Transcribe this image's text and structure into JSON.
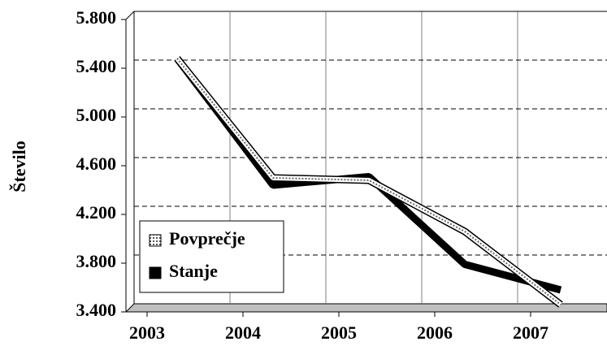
{
  "chart_data": {
    "type": "line",
    "y_label": "Število",
    "categories": [
      "2003",
      "2004",
      "2005",
      "2006",
      "2007"
    ],
    "series": [
      {
        "name": "Povprečje",
        "color": "#ffffff",
        "values": [
          5480,
          4500,
          4480,
          4060,
          3460
        ]
      },
      {
        "name": "Stanje",
        "color": "#000000",
        "values": [
          5480,
          4440,
          4510,
          3790,
          3580
        ]
      }
    ],
    "ylim": [
      3400,
      5800
    ],
    "yticks": [
      {
        "value": 3400,
        "label": "3.400"
      },
      {
        "value": 3800,
        "label": "3.800"
      },
      {
        "value": 4200,
        "label": "4.200"
      },
      {
        "value": 4600,
        "label": "4.600"
      },
      {
        "value": 5000,
        "label": "5.000"
      },
      {
        "value": 5400,
        "label": "5.400"
      },
      {
        "value": 5800,
        "label": "5.800"
      }
    ],
    "grid": true,
    "legend": "lower left"
  }
}
